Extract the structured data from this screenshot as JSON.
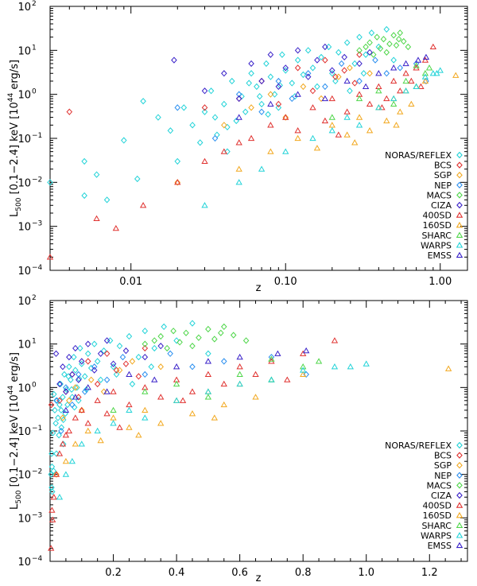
{
  "chart_data": [
    {
      "type": "scatter",
      "title": "",
      "xlabel": "z",
      "ylabel": {
        "main": "L",
        "sub": "500",
        "band": " [0.1−2.4] keV [10",
        "exp": "44",
        "unit": " erg/s]"
      },
      "xscale": "log",
      "yscale": "log",
      "xlim": [
        0.003,
        1.5
      ],
      "ylim": [
        0.0001,
        100
      ],
      "x_ticks": [
        0.01,
        0.1,
        1.0
      ],
      "x_tick_labels": [
        "0.01",
        "0.10",
        "1.00"
      ],
      "y_ticks": [
        0.0001,
        0.001,
        0.01,
        0.1,
        1,
        10,
        100
      ],
      "y_tick_labels": [
        {
          "base": "10",
          "exp": "−4"
        },
        {
          "base": "10",
          "exp": "−3"
        },
        {
          "base": "10",
          "exp": "−2"
        },
        {
          "base": "10",
          "exp": "−1"
        },
        {
          "base": "10",
          "exp": "0"
        },
        {
          "base": "10",
          "exp": "1"
        },
        {
          "base": "10",
          "exp": "2"
        }
      ],
      "legend_position": "right"
    },
    {
      "type": "scatter",
      "title": "",
      "xlabel": "z",
      "ylabel": {
        "main": "L",
        "sub": "500",
        "band": " [0.1−2.4] keV [10",
        "exp": "44",
        "unit": " erg/s]"
      },
      "xscale": "linear",
      "yscale": "log",
      "xlim": [
        0.0,
        1.32
      ],
      "ylim": [
        0.0001,
        100
      ],
      "x_ticks": [
        0.2,
        0.4,
        0.6,
        0.8,
        1.0,
        1.2
      ],
      "x_tick_labels": [
        "0.2",
        "0.4",
        "0.6",
        "0.8",
        "1.0",
        "1.2"
      ],
      "y_ticks": [
        0.0001,
        0.001,
        0.01,
        0.1,
        1,
        10,
        100
      ],
      "y_tick_labels": [
        {
          "base": "10",
          "exp": "−4"
        },
        {
          "base": "10",
          "exp": "−3"
        },
        {
          "base": "10",
          "exp": "−2"
        },
        {
          "base": "10",
          "exp": "−1"
        },
        {
          "base": "10",
          "exp": "0"
        },
        {
          "base": "10",
          "exp": "1"
        },
        {
          "base": "10",
          "exp": "2"
        }
      ],
      "legend_position": "right"
    }
  ],
  "series": [
    {
      "name": "NORAS/REFLEX",
      "color": "#22d3d8",
      "marker": "diamond",
      "points": [
        [
          0.003,
          0.01
        ],
        [
          0.005,
          0.03
        ],
        [
          0.005,
          0.005
        ],
        [
          0.006,
          0.015
        ],
        [
          0.007,
          0.004
        ],
        [
          0.009,
          0.09
        ],
        [
          0.011,
          0.012
        ],
        [
          0.012,
          0.7
        ],
        [
          0.015,
          0.3
        ],
        [
          0.018,
          0.15
        ],
        [
          0.02,
          0.03
        ],
        [
          0.022,
          0.5
        ],
        [
          0.025,
          0.2
        ],
        [
          0.028,
          0.08
        ],
        [
          0.03,
          0.4
        ],
        [
          0.033,
          1.2
        ],
        [
          0.036,
          0.12
        ],
        [
          0.04,
          0.6
        ],
        [
          0.042,
          0.05
        ],
        [
          0.045,
          2.0
        ],
        [
          0.048,
          0.25
        ],
        [
          0.052,
          0.9
        ],
        [
          0.055,
          0.4
        ],
        [
          0.06,
          3.0
        ],
        [
          0.065,
          1.5
        ],
        [
          0.07,
          0.6
        ],
        [
          0.075,
          5.0
        ],
        [
          0.08,
          2.5
        ],
        [
          0.085,
          1.0
        ],
        [
          0.09,
          0.5
        ],
        [
          0.095,
          8.0
        ],
        [
          0.1,
          3.5
        ],
        [
          0.11,
          1.8
        ],
        [
          0.12,
          6.0
        ],
        [
          0.13,
          2.8
        ],
        [
          0.14,
          10.0
        ],
        [
          0.15,
          4.0
        ],
        [
          0.17,
          7.0
        ],
        [
          0.19,
          12.0
        ],
        [
          0.2,
          3.0
        ],
        [
          0.22,
          9.0
        ],
        [
          0.25,
          15.0
        ],
        [
          0.28,
          5.0
        ],
        [
          0.3,
          20.0
        ],
        [
          0.33,
          8.0
        ],
        [
          0.36,
          25.0
        ],
        [
          0.4,
          12.0
        ],
        [
          0.45,
          30.0
        ],
        [
          0.5,
          6.0
        ],
        [
          0.035,
          0.3
        ],
        [
          0.058,
          1.8
        ],
        [
          0.068,
          0.9
        ],
        [
          0.115,
          0.9
        ],
        [
          0.16,
          1.5
        ],
        [
          0.21,
          2.0
        ],
        [
          0.26,
          1.2
        ],
        [
          0.32,
          3.0
        ],
        [
          0.042,
          0.18
        ],
        [
          0.077,
          0.35
        ],
        [
          0.092,
          1.6
        ]
      ]
    },
    {
      "name": "BCS",
      "color": "#e0312f",
      "marker": "diamond",
      "points": [
        [
          0.004,
          0.4
        ],
        [
          0.03,
          0.5
        ],
        [
          0.05,
          0.8
        ],
        [
          0.07,
          2.0
        ],
        [
          0.09,
          0.6
        ],
        [
          0.12,
          4.0
        ],
        [
          0.15,
          1.2
        ],
        [
          0.18,
          6.0
        ],
        [
          0.21,
          2.5
        ],
        [
          0.24,
          3.5
        ],
        [
          0.28,
          1.8
        ],
        [
          0.3,
          8.0
        ]
      ]
    },
    {
      "name": "SGP",
      "color": "#f2a81f",
      "marker": "diamond",
      "points": [
        [
          0.02,
          0.01
        ],
        [
          0.04,
          0.2
        ],
        [
          0.06,
          0.5
        ],
        [
          0.08,
          1.0
        ],
        [
          0.1,
          0.3
        ],
        [
          0.13,
          1.5
        ],
        [
          0.17,
          0.8
        ],
        [
          0.22,
          2.5
        ],
        [
          0.26,
          4.0
        ],
        [
          0.35,
          3.0
        ]
      ]
    },
    {
      "name": "NEP",
      "color": "#2b8ff0",
      "marker": "diamond",
      "points": [
        [
          0.02,
          0.5
        ],
        [
          0.035,
          0.1
        ],
        [
          0.05,
          1.0
        ],
        [
          0.07,
          0.4
        ],
        [
          0.09,
          2.0
        ],
        [
          0.11,
          0.8
        ],
        [
          0.14,
          3.0
        ],
        [
          0.18,
          1.5
        ],
        [
          0.23,
          5.0
        ],
        [
          0.3,
          2.0
        ],
        [
          0.38,
          6.0
        ],
        [
          0.45,
          3.0
        ],
        [
          0.55,
          4.0
        ],
        [
          0.7,
          5.0
        ],
        [
          0.81,
          2.0
        ]
      ]
    },
    {
      "name": "MACS",
      "color": "#4fd64a",
      "marker": "diamond",
      "points": [
        [
          0.3,
          10.0
        ],
        [
          0.33,
          12.0
        ],
        [
          0.35,
          15.0
        ],
        [
          0.37,
          8.0
        ],
        [
          0.39,
          20.0
        ],
        [
          0.41,
          11.0
        ],
        [
          0.43,
          18.0
        ],
        [
          0.45,
          9.0
        ],
        [
          0.47,
          14.0
        ],
        [
          0.5,
          22.0
        ],
        [
          0.52,
          13.0
        ],
        [
          0.55,
          25.0
        ],
        [
          0.58,
          16.0
        ],
        [
          0.62,
          12.0
        ],
        [
          0.54,
          18.0
        ]
      ]
    },
    {
      "name": "CIZA",
      "color": "#3a22c9",
      "marker": "diamond",
      "points": [
        [
          0.019,
          6.0
        ],
        [
          0.03,
          1.2
        ],
        [
          0.04,
          3.0
        ],
        [
          0.05,
          0.8
        ],
        [
          0.06,
          5.0
        ],
        [
          0.07,
          2.0
        ],
        [
          0.08,
          8.0
        ],
        [
          0.09,
          1.5
        ],
        [
          0.1,
          4.0
        ],
        [
          0.12,
          10.0
        ],
        [
          0.14,
          2.5
        ],
        [
          0.16,
          6.0
        ],
        [
          0.18,
          12.0
        ],
        [
          0.2,
          3.5
        ],
        [
          0.24,
          7.0
        ],
        [
          0.3,
          5.0
        ],
        [
          0.35,
          9.0
        ]
      ]
    },
    {
      "name": "400SD",
      "color": "#e0312f",
      "marker": "triangle",
      "points": [
        [
          0.003,
          0.0002
        ],
        [
          0.006,
          0.0015
        ],
        [
          0.008,
          0.0009
        ],
        [
          0.012,
          0.003
        ],
        [
          0.02,
          0.01
        ],
        [
          0.03,
          0.03
        ],
        [
          0.04,
          0.05
        ],
        [
          0.06,
          0.1
        ],
        [
          0.08,
          0.2
        ],
        [
          0.1,
          0.3
        ],
        [
          0.12,
          0.15
        ],
        [
          0.15,
          0.5
        ],
        [
          0.18,
          0.25
        ],
        [
          0.2,
          0.8
        ],
        [
          0.25,
          0.4
        ],
        [
          0.3,
          1.0
        ],
        [
          0.35,
          0.6
        ],
        [
          0.4,
          1.5
        ],
        [
          0.45,
          0.8
        ],
        [
          0.5,
          2.0
        ],
        [
          0.55,
          1.2
        ],
        [
          0.6,
          3.0
        ],
        [
          0.65,
          2.0
        ],
        [
          0.7,
          4.0
        ],
        [
          0.75,
          1.5
        ],
        [
          0.8,
          6.0
        ],
        [
          0.9,
          12.0
        ],
        [
          0.05,
          0.08
        ],
        [
          0.22,
          0.12
        ],
        [
          0.42,
          0.5
        ]
      ]
    },
    {
      "name": "160SD",
      "color": "#f2a81f",
      "marker": "triangle",
      "points": [
        [
          0.05,
          0.02
        ],
        [
          0.08,
          0.05
        ],
        [
          0.12,
          0.1
        ],
        [
          0.16,
          0.06
        ],
        [
          0.2,
          0.2
        ],
        [
          0.25,
          0.12
        ],
        [
          0.3,
          0.3
        ],
        [
          0.35,
          0.15
        ],
        [
          0.4,
          0.5
        ],
        [
          0.45,
          0.25
        ],
        [
          0.5,
          0.8
        ],
        [
          0.55,
          0.4
        ],
        [
          0.6,
          1.2
        ],
        [
          0.65,
          0.6
        ],
        [
          0.7,
          1.5
        ],
        [
          0.8,
          2.0
        ],
        [
          1.26,
          2.7
        ],
        [
          0.28,
          0.08
        ],
        [
          0.52,
          0.2
        ]
      ]
    },
    {
      "name": "SHARC",
      "color": "#4fd64a",
      "marker": "triangle",
      "points": [
        [
          0.2,
          0.3
        ],
        [
          0.3,
          0.8
        ],
        [
          0.4,
          1.2
        ],
        [
          0.5,
          0.6
        ],
        [
          0.6,
          2.0
        ],
        [
          0.7,
          1.5
        ],
        [
          0.8,
          3.0
        ],
        [
          0.85,
          4.0
        ],
        [
          0.7,
          4.5
        ]
      ]
    },
    {
      "name": "WARPS",
      "color": "#22d3d8",
      "marker": "triangle",
      "points": [
        [
          0.03,
          0.003
        ],
        [
          0.05,
          0.01
        ],
        [
          0.07,
          0.02
        ],
        [
          0.1,
          0.05
        ],
        [
          0.15,
          0.1
        ],
        [
          0.2,
          0.15
        ],
        [
          0.25,
          0.3
        ],
        [
          0.3,
          0.2
        ],
        [
          0.4,
          0.5
        ],
        [
          0.5,
          0.8
        ],
        [
          0.6,
          1.2
        ],
        [
          0.7,
          1.5
        ],
        [
          0.8,
          2.5
        ],
        [
          0.9,
          3.0
        ],
        [
          1.0,
          3.5
        ],
        [
          0.95,
          3.0
        ]
      ]
    },
    {
      "name": "EMSS",
      "color": "#3a22c9",
      "marker": "triangle",
      "points": [
        [
          0.05,
          0.3
        ],
        [
          0.08,
          0.6
        ],
        [
          0.12,
          1.0
        ],
        [
          0.18,
          0.8
        ],
        [
          0.25,
          2.0
        ],
        [
          0.33,
          1.5
        ],
        [
          0.4,
          3.0
        ],
        [
          0.5,
          4.0
        ],
        [
          0.6,
          5.0
        ],
        [
          0.72,
          6.0
        ],
        [
          0.81,
          7.0
        ]
      ]
    }
  ]
}
